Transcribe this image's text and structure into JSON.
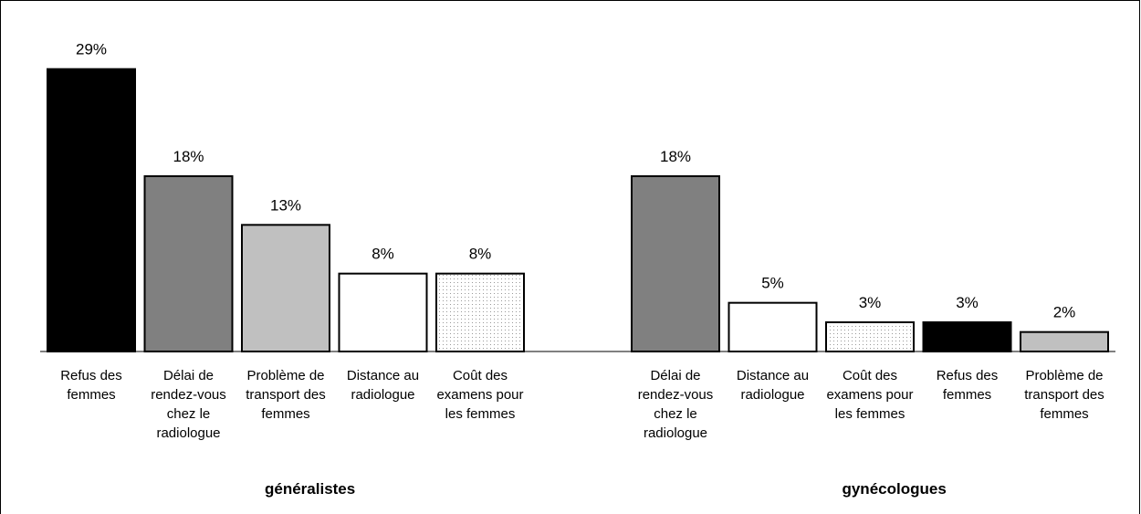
{
  "chart_data": [
    {
      "type": "bar",
      "title": "généralistes",
      "categories": [
        "Refus des femmes",
        "Délai de rendez-vous chez le radiologue",
        "Problème de transport des femmes",
        "Distance au radiologue",
        "Coût des examens pour les femmes"
      ],
      "values": [
        29,
        18,
        13,
        8,
        8
      ],
      "value_labels": [
        "29%",
        "18%",
        "13%",
        "8%",
        "8%"
      ],
      "colors": [
        "#000000",
        "#808080",
        "#c0c0c0",
        "#ffffff",
        "#ffffff"
      ],
      "dotted": [
        false,
        false,
        false,
        false,
        true
      ],
      "ylim": [
        0,
        30
      ]
    },
    {
      "type": "bar",
      "title": "gynécologues",
      "categories": [
        "Délai de rendez-vous chez le radiologue",
        "Distance au radiologue",
        "Coût des examens pour les femmes",
        "Refus des femmes",
        "Problème de transport des femmes"
      ],
      "values": [
        18,
        5,
        3,
        3,
        2
      ],
      "value_labels": [
        "18%",
        "5%",
        "3%",
        "3%",
        "2%"
      ],
      "colors": [
        "#808080",
        "#ffffff",
        "#ffffff",
        "#000000",
        "#c0c0c0"
      ],
      "dotted": [
        false,
        false,
        true,
        false,
        false
      ],
      "ylim": [
        0,
        30
      ]
    }
  ]
}
